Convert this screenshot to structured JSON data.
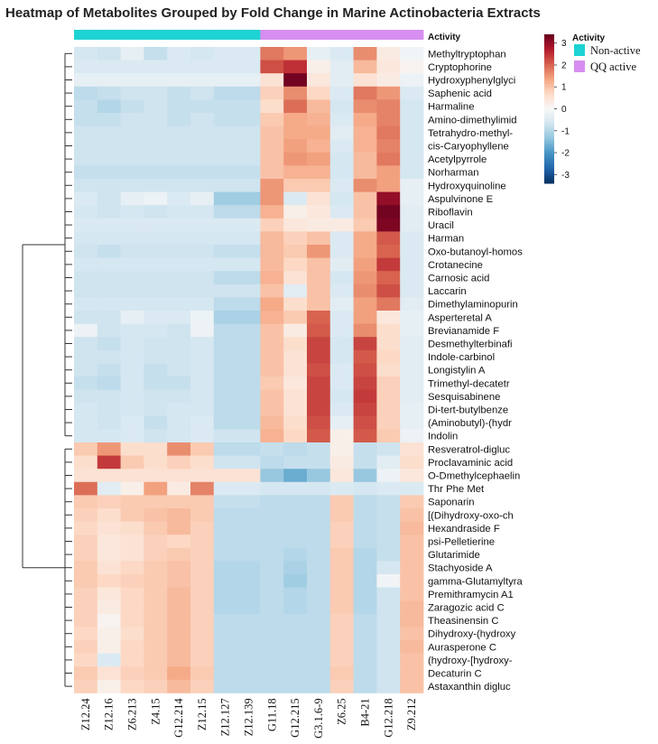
{
  "chart_data": {
    "type": "heatmap",
    "title": "Heatmap of Metabolites Grouped by Fold Change in Marine Actinobacteria Extracts",
    "annotation_title": "Activity",
    "legend_title": "Activity",
    "legend": [
      {
        "label": "Non-active",
        "color": "#1ed3d3"
      },
      {
        "label": "QQ active",
        "color": "#d68ff0"
      }
    ],
    "columns": [
      "Z12.24",
      "Z12.16",
      "Z6.213",
      "Z4.15",
      "G12.214",
      "Z12.15",
      "Z12.127",
      "Z12.139",
      "G11.18",
      "G12.215",
      "G3.1.6-9",
      "Z6.25",
      "B4-21",
      "G12.218",
      "Z9.212"
    ],
    "column_groups": [
      "Non-active",
      "Non-active",
      "Non-active",
      "Non-active",
      "Non-active",
      "Non-active",
      "Non-active",
      "Non-active",
      "QQ active",
      "QQ active",
      "QQ active",
      "QQ active",
      "QQ active",
      "QQ active",
      "QQ active"
    ],
    "rows": [
      "Methyltryptophan",
      "Cryptophorine",
      "Hydroxyphenylglyci",
      "Saphenic acid",
      "Harmaline",
      "Amino-dimethylimid",
      "Tetrahydro-methyl-",
      "cis-Caryophyllene",
      "Acetylpyrrole",
      "Norharman",
      "Hydroxyquinoline",
      "Aspulvinone E",
      "Riboflavin",
      "Uracil",
      "Harman",
      "Oxo-butanoyl-homos",
      "Crotanecine",
      "Carnosic acid",
      "Laccarin",
      "Dimethylaminopurin",
      "Asperteretal A",
      "Brevianamide F",
      "Desmethylterbinafi",
      "Indole-carbinol",
      "Longistylin A",
      "Trimethyl-decatetr",
      "Sesquisabinene",
      "Di-tert-butylbenze",
      "(Aminobutyl)-(hydr",
      "Indolin",
      "Resveratrol-digluc",
      "Proclavaminic acid",
      "O-Dmethylcephaelin",
      "Thr Phe Met",
      "Saponarin",
      "[(Dihydroxy-oxo-ch",
      "Hexandraside F",
      "psi-Pelletierine",
      "Glutarimide",
      "Stachyoside A",
      "gamma-Glutamyltyra",
      "Premithramycin A1",
      "Zaragozic acid C",
      "Theasinensin C",
      "Dihydroxy-(hydroxy",
      "Aurasperone C",
      "(hydroxy-[hydroxy-",
      "Decaturin C",
      "Astaxanthin digluc"
    ],
    "values": [
      [
        -0.6,
        -0.7,
        -0.3,
        -0.8,
        -0.5,
        -0.6,
        -0.5,
        -0.5,
        1.8,
        1.5,
        -0.3,
        -0.5,
        1.6,
        0.3,
        -0.1
      ],
      [
        -0.5,
        -0.5,
        -0.5,
        -0.5,
        -0.5,
        -0.5,
        -0.5,
        -0.5,
        2.2,
        2.5,
        0.2,
        -0.4,
        1.1,
        0.4,
        0.1
      ],
      [
        -0.3,
        -0.3,
        -0.3,
        -0.3,
        -0.3,
        -0.3,
        -0.3,
        -0.3,
        0.5,
        3.3,
        0.4,
        -0.4,
        0.5,
        0.3,
        -0.2
      ],
      [
        -0.9,
        -0.8,
        -0.7,
        -0.7,
        -0.8,
        -0.7,
        -0.9,
        -0.9,
        0.8,
        1.6,
        0.7,
        -0.5,
        1.8,
        1.5,
        -0.5
      ],
      [
        -0.8,
        -1.0,
        -0.8,
        -0.7,
        -0.8,
        -0.8,
        -0.8,
        -0.8,
        0.6,
        1.9,
        1.1,
        -0.6,
        1.6,
        1.7,
        -0.6
      ],
      [
        -0.8,
        -0.8,
        -0.7,
        -0.7,
        -0.8,
        -0.7,
        -0.8,
        -0.8,
        0.9,
        1.3,
        1.2,
        -0.5,
        1.3,
        1.7,
        -0.6
      ],
      [
        -0.7,
        -0.7,
        -0.7,
        -0.7,
        -0.7,
        -0.7,
        -0.7,
        -0.7,
        1.0,
        1.3,
        1.3,
        -0.4,
        1.2,
        1.8,
        -0.6
      ],
      [
        -0.7,
        -0.7,
        -0.7,
        -0.7,
        -0.7,
        -0.7,
        -0.7,
        -0.7,
        1.0,
        1.4,
        1.2,
        -0.5,
        1.2,
        1.7,
        -0.6
      ],
      [
        -0.7,
        -0.7,
        -0.7,
        -0.7,
        -0.7,
        -0.7,
        -0.7,
        -0.7,
        1.0,
        1.5,
        1.4,
        -0.6,
        1.1,
        1.8,
        -0.6
      ],
      [
        -0.8,
        -0.8,
        -0.8,
        -0.8,
        -0.8,
        -0.8,
        -0.8,
        -0.8,
        1.0,
        1.2,
        1.2,
        -0.6,
        1.1,
        1.4,
        -0.6
      ],
      [
        -0.7,
        -0.7,
        -0.7,
        -0.7,
        -0.7,
        -0.7,
        -0.7,
        -0.7,
        1.5,
        0.9,
        0.9,
        -0.5,
        1.6,
        1.4,
        -0.3
      ],
      [
        -0.5,
        -0.7,
        -0.3,
        -0.2,
        -0.5,
        -0.3,
        -1.2,
        -1.2,
        1.5,
        -0.5,
        0.5,
        -0.6,
        1.0,
        3.0,
        -0.3
      ],
      [
        -0.6,
        -0.7,
        -0.6,
        -0.7,
        -0.6,
        -0.6,
        -0.9,
        -0.9,
        1.2,
        0.2,
        0.4,
        -0.5,
        1.0,
        3.3,
        -0.4
      ],
      [
        -0.5,
        -0.5,
        -0.5,
        -0.5,
        -0.5,
        -0.5,
        -0.5,
        -0.5,
        0.8,
        0.4,
        0.3,
        0.3,
        0.9,
        3.2,
        -0.4
      ],
      [
        -0.6,
        -0.6,
        -0.6,
        -0.6,
        -0.6,
        -0.6,
        -0.6,
        -0.6,
        1.1,
        0.8,
        1.0,
        -0.5,
        1.3,
        2.1,
        -0.5
      ],
      [
        -0.7,
        -0.8,
        -0.7,
        -0.7,
        -0.7,
        -0.7,
        -0.8,
        -0.8,
        1.1,
        0.9,
        1.5,
        -0.5,
        1.3,
        2.0,
        -0.5
      ],
      [
        -0.6,
        -0.6,
        -0.6,
        -0.6,
        -0.6,
        -0.6,
        -0.6,
        -0.6,
        1.1,
        0.7,
        1.0,
        -0.4,
        1.4,
        2.4,
        -0.5
      ],
      [
        -0.7,
        -0.7,
        -0.7,
        -0.7,
        -0.7,
        -0.7,
        -0.9,
        -0.9,
        1.2,
        0.5,
        1.0,
        -0.6,
        1.5,
        2.0,
        -0.5
      ],
      [
        -0.7,
        -0.7,
        -0.7,
        -0.7,
        -0.7,
        -0.7,
        -0.7,
        -0.7,
        1.0,
        -0.4,
        1.0,
        -0.5,
        1.6,
        2.2,
        -0.5
      ],
      [
        -0.6,
        -0.6,
        -0.6,
        -0.6,
        -0.6,
        -0.6,
        -0.9,
        -0.9,
        1.3,
        0.6,
        1.0,
        -0.4,
        1.4,
        1.8,
        -0.4
      ],
      [
        -0.7,
        -0.7,
        -0.3,
        -0.5,
        -0.5,
        -0.2,
        -1.1,
        -1.1,
        1.2,
        0.9,
        2.0,
        -0.5,
        1.4,
        0.4,
        -0.3
      ],
      [
        -0.2,
        -0.7,
        -0.6,
        -0.6,
        -0.7,
        -0.2,
        -0.9,
        -0.9,
        1.0,
        0.3,
        2.1,
        -0.5,
        1.6,
        0.6,
        -0.3
      ],
      [
        -0.7,
        -0.8,
        -0.6,
        -0.7,
        -0.7,
        -0.6,
        -0.9,
        -0.9,
        1.0,
        0.6,
        2.3,
        -0.6,
        2.3,
        0.6,
        -0.4
      ],
      [
        -0.7,
        -0.7,
        -0.6,
        -0.7,
        -0.7,
        -0.6,
        -0.9,
        -0.9,
        1.0,
        0.5,
        2.3,
        -0.6,
        2.1,
        0.7,
        -0.4
      ],
      [
        -0.7,
        -0.8,
        -0.6,
        -0.8,
        -0.7,
        -0.6,
        -0.9,
        -0.9,
        1.0,
        0.5,
        2.2,
        -0.5,
        2.2,
        0.6,
        -0.4
      ],
      [
        -0.8,
        -0.9,
        -0.6,
        -0.8,
        -0.8,
        -0.6,
        -0.9,
        -0.9,
        0.9,
        0.4,
        2.3,
        -0.5,
        2.3,
        0.8,
        -0.4
      ],
      [
        -0.7,
        -0.7,
        -0.6,
        -0.7,
        -0.7,
        -0.6,
        -0.9,
        -0.9,
        1.0,
        0.5,
        2.3,
        -0.6,
        2.4,
        0.8,
        -0.4
      ],
      [
        -0.6,
        -0.7,
        -0.6,
        -0.7,
        -0.6,
        -0.6,
        -0.9,
        -0.9,
        1.0,
        0.5,
        2.3,
        -0.5,
        2.3,
        0.8,
        -0.3
      ],
      [
        -0.6,
        -0.7,
        -0.5,
        -0.8,
        -0.6,
        -0.5,
        -0.9,
        -0.9,
        1.1,
        0.6,
        2.2,
        -0.3,
        2.2,
        0.8,
        -0.3
      ],
      [
        -0.6,
        -0.6,
        -0.5,
        -0.7,
        -0.6,
        -0.5,
        -0.7,
        -0.7,
        1.2,
        0.7,
        2.1,
        0.2,
        2.1,
        0.9,
        -0.2
      ],
      [
        0.9,
        1.5,
        0.6,
        0.6,
        1.6,
        0.9,
        -0.9,
        -0.9,
        -0.8,
        -0.9,
        -0.8,
        0.2,
        -0.8,
        -0.7,
        0.5
      ],
      [
        0.6,
        2.4,
        0.9,
        0.6,
        0.8,
        0.6,
        -0.7,
        -0.7,
        -0.9,
        -0.8,
        -0.8,
        0.3,
        -0.8,
        -0.4,
        0.6
      ],
      [
        0.5,
        0.5,
        0.5,
        0.5,
        0.5,
        0.5,
        0.5,
        0.5,
        -1.3,
        -1.7,
        -1.3,
        0.4,
        -1.3,
        -0.2,
        0.4
      ],
      [
        1.9,
        -0.4,
        0.2,
        1.4,
        0.3,
        1.7,
        -0.5,
        -0.5,
        -0.6,
        -0.6,
        -0.6,
        -0.5,
        -0.6,
        -0.5,
        -0.5
      ],
      [
        0.9,
        0.8,
        0.9,
        0.9,
        0.9,
        0.9,
        -0.8,
        -0.8,
        -0.9,
        -0.9,
        -0.9,
        0.9,
        -0.9,
        -0.8,
        0.9
      ],
      [
        0.8,
        0.6,
        0.9,
        1.0,
        1.1,
        0.9,
        -0.9,
        -0.9,
        -0.9,
        -0.9,
        -0.9,
        0.9,
        -0.9,
        -0.8,
        1.0
      ],
      [
        0.7,
        0.5,
        0.6,
        0.9,
        1.1,
        0.8,
        -0.9,
        -0.9,
        -0.9,
        -0.9,
        -0.9,
        0.8,
        -0.9,
        -0.8,
        1.1
      ],
      [
        0.8,
        0.4,
        0.5,
        0.8,
        0.7,
        0.8,
        -0.9,
        -0.9,
        -0.9,
        -0.9,
        -0.9,
        0.8,
        -0.9,
        -0.8,
        1.0
      ],
      [
        0.8,
        0.4,
        0.5,
        0.8,
        0.9,
        0.8,
        -0.9,
        -0.9,
        -0.9,
        -1.0,
        -0.9,
        0.9,
        -1.0,
        -0.8,
        1.0
      ],
      [
        0.9,
        0.5,
        0.7,
        0.9,
        1.0,
        0.8,
        -1.0,
        -1.0,
        -0.9,
        -1.1,
        -0.9,
        0.9,
        -1.0,
        -0.6,
        1.0
      ],
      [
        0.9,
        0.7,
        0.8,
        0.9,
        1.0,
        0.8,
        -1.0,
        -1.0,
        -0.9,
        -1.2,
        -0.9,
        0.9,
        -1.0,
        -0.1,
        1.0
      ],
      [
        0.8,
        0.4,
        0.7,
        0.9,
        1.1,
        0.8,
        -1.0,
        -1.0,
        -0.9,
        -1.0,
        -0.9,
        0.9,
        -1.0,
        -0.7,
        1.0
      ],
      [
        0.8,
        0.3,
        0.7,
        0.9,
        1.1,
        0.8,
        -1.0,
        -1.0,
        -0.9,
        -1.0,
        -0.9,
        0.9,
        -1.0,
        -0.7,
        1.1
      ],
      [
        0.8,
        0.1,
        0.7,
        0.9,
        1.1,
        0.8,
        -0.9,
        -0.9,
        -0.9,
        -0.9,
        -0.9,
        0.8,
        -0.9,
        -0.7,
        1.1
      ],
      [
        0.7,
        0.2,
        0.6,
        0.9,
        1.1,
        0.8,
        -0.9,
        -0.9,
        -0.9,
        -0.9,
        -0.9,
        0.8,
        -0.9,
        -0.7,
        1.0
      ],
      [
        0.8,
        0.2,
        0.7,
        0.9,
        1.1,
        0.8,
        -0.9,
        -0.9,
        -0.9,
        -0.9,
        -0.9,
        0.8,
        -0.9,
        -0.7,
        1.1
      ],
      [
        0.7,
        -0.5,
        0.7,
        0.9,
        1.1,
        0.8,
        -0.9,
        -0.9,
        -0.9,
        -0.9,
        -0.9,
        0.8,
        -0.9,
        -0.7,
        1.0
      ],
      [
        0.9,
        0.5,
        0.8,
        0.9,
        1.3,
        0.9,
        -0.9,
        -0.9,
        -0.9,
        -0.9,
        -0.9,
        0.9,
        -0.9,
        -0.7,
        1.0
      ],
      [
        0.8,
        0.2,
        0.7,
        0.8,
        1.1,
        0.8,
        -0.9,
        -0.9,
        -0.9,
        -0.9,
        -0.9,
        0.8,
        -0.9,
        -0.7,
        1.0
      ]
    ],
    "color_scale": {
      "min": -3.4,
      "max": 3.4,
      "ticks": [
        3,
        2,
        1,
        0,
        -1,
        -2,
        -3
      ],
      "colors": [
        "#053061",
        "#2166ac",
        "#4393c3",
        "#92c5de",
        "#d1e5f0",
        "#f7f7f7",
        "#fddbc7",
        "#f4a582",
        "#d6604d",
        "#b2182b",
        "#67001f"
      ]
    },
    "dendrogram": {
      "row_split_index": 30
    }
  }
}
